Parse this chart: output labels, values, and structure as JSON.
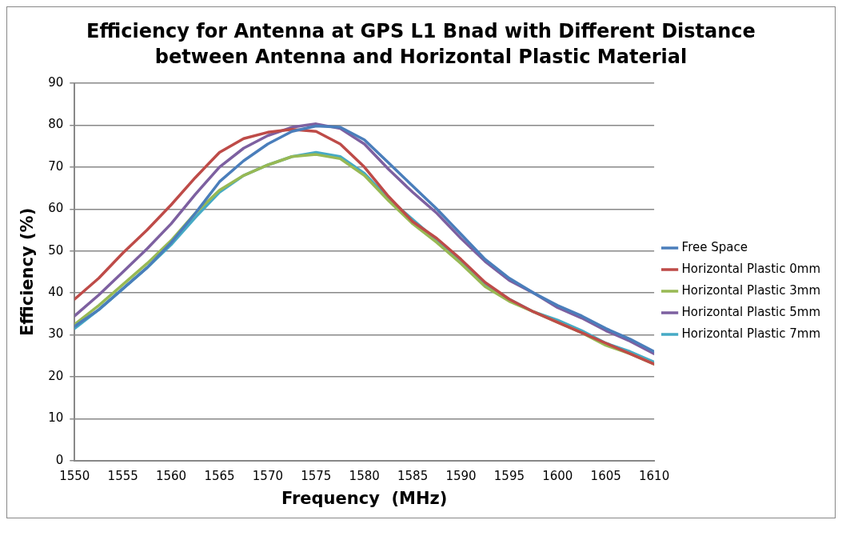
{
  "chart_data": {
    "type": "line",
    "title": "Efficiency for Antenna at GPS L1 Bnad with Different Distance between Antenna and Horizontal Plastic Material",
    "xlabel": "Frequency  (MHz)",
    "ylabel": "Efficiency (%)",
    "x": [
      1550,
      1552.5,
      1555,
      1557.5,
      1560,
      1562.5,
      1565,
      1567.5,
      1570,
      1572.5,
      1575,
      1577.5,
      1580,
      1582.5,
      1585,
      1587.5,
      1590,
      1592.5,
      1595,
      1597.5,
      1600,
      1602.5,
      1605,
      1607.5,
      1610
    ],
    "series": [
      {
        "name": "Free Space",
        "color": "#4a7ebb",
        "values": [
          32,
          36,
          41,
          46,
          52,
          59,
          66.5,
          71.5,
          75.5,
          78.5,
          79.8,
          79.5,
          76.5,
          71,
          65.5,
          60,
          54,
          48,
          43.5,
          40,
          37,
          34.5,
          31.5,
          29,
          26
        ]
      },
      {
        "name": "Horizontal Plastic 0mm",
        "color": "#be4b48",
        "values": [
          38.5,
          43.5,
          49.5,
          55,
          61,
          67.5,
          73.5,
          76.8,
          78.3,
          79,
          78.5,
          75.5,
          70,
          63,
          57,
          53,
          48,
          42.5,
          38.5,
          35.5,
          33,
          30.5,
          28,
          25.5,
          23
        ]
      },
      {
        "name": "Horizontal Plastic 3mm",
        "color": "#98b954",
        "values": [
          32.5,
          37,
          42,
          47,
          52.5,
          59,
          64.5,
          68,
          70.5,
          72.5,
          73,
          72,
          68,
          62,
          56.5,
          52,
          47,
          41.5,
          38,
          35.5,
          33,
          30.5,
          27.5,
          25.5,
          23
        ]
      },
      {
        "name": "Horizontal Plastic 5mm",
        "color": "#7d60a0",
        "values": [
          34.5,
          39.5,
          45,
          50.5,
          56.5,
          63.5,
          70,
          74.5,
          77.5,
          79.5,
          80.3,
          79.2,
          75.5,
          69.5,
          64,
          59,
          53,
          47.5,
          43,
          40,
          36.5,
          34,
          31,
          28.5,
          25.5
        ]
      },
      {
        "name": "Horizontal Plastic 7mm",
        "color": "#46aac5",
        "values": [
          31.5,
          36,
          41,
          46,
          51.5,
          58,
          64,
          68,
          70.5,
          72.5,
          73.5,
          72.5,
          68.5,
          62.5,
          57.5,
          52.5,
          47.5,
          42,
          38.5,
          35.5,
          33.5,
          31,
          28,
          26,
          23.5
        ]
      }
    ],
    "xlim": [
      1550,
      1610
    ],
    "xticks": [
      1550,
      1555,
      1560,
      1565,
      1570,
      1575,
      1580,
      1585,
      1590,
      1595,
      1600,
      1605,
      1610
    ],
    "ylim": [
      0,
      90
    ],
    "yticks": [
      0,
      10,
      20,
      30,
      40,
      50,
      60,
      70,
      80,
      90
    ],
    "grid": "y",
    "legend": "right",
    "marker": "none",
    "line_style": "solid"
  }
}
